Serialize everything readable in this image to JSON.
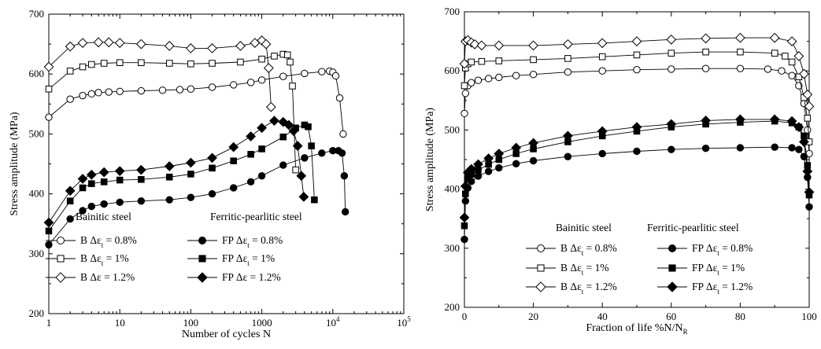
{
  "chart_data": [
    {
      "type": "line",
      "xlabel": "Number of cycles N",
      "ylabel": "Stress amplitude (MPa)",
      "xscale": "log",
      "xlim": [
        1,
        100000
      ],
      "ylim": [
        200,
        700
      ],
      "xticks": [
        1,
        10,
        100,
        1000,
        10000,
        100000
      ],
      "xtick_labels": [
        {
          "base": "1",
          "exp": ""
        },
        {
          "base": "10",
          "exp": ""
        },
        {
          "base": "100",
          "exp": ""
        },
        {
          "base": "1000",
          "exp": ""
        },
        {
          "base": "10",
          "exp": "4"
        },
        {
          "base": "10",
          "exp": "5"
        }
      ],
      "yticks": [
        200,
        300,
        400,
        500,
        600,
        700
      ],
      "grid": false,
      "legend": {
        "placement": "bottom-left",
        "group_titles": [
          "Bainitic steel",
          "Ferritic-pearlitic steel"
        ],
        "entries": [
          {
            "prefix": "B ",
            "sub": "t",
            "value": " = 0.8%",
            "marker": "circle",
            "filled": false
          },
          {
            "prefix": "FP ",
            "sub": "t",
            "value": " = 0.8%",
            "marker": "circle",
            "filled": true
          },
          {
            "prefix": "B ",
            "sub": "t",
            "value": " = 1%",
            "marker": "square",
            "filled": false
          },
          {
            "prefix": "FP  ",
            "sub": "t",
            "value": " = 1%",
            "marker": "square",
            "filled": true
          },
          {
            "prefix": "B ",
            "sub": "",
            "value": " = 1.2%",
            "marker": "diamond",
            "filled": false
          },
          {
            "prefix": "FP  ",
            "sub": "",
            "value": " = 1.2%",
            "marker": "diamond",
            "filled": true
          }
        ]
      },
      "series": [
        {
          "marker": "circle",
          "filled": false,
          "x": [
            1,
            2,
            3,
            4,
            5,
            7,
            10,
            20,
            40,
            70,
            100,
            200,
            400,
            700,
            1000,
            2000,
            4000,
            7000,
            9000,
            10000,
            11000,
            12500,
            14000
          ],
          "y": [
            528,
            558,
            564,
            567,
            569,
            570,
            571,
            572,
            573,
            574,
            575,
            578,
            582,
            586,
            590,
            596,
            601,
            604,
            605,
            603,
            597,
            560,
            500
          ]
        },
        {
          "marker": "square",
          "filled": false,
          "x": [
            1,
            2,
            3,
            4,
            6,
            10,
            20,
            50,
            100,
            200,
            500,
            1000,
            1500,
            2000,
            2300,
            2500,
            2700,
            3000
          ],
          "y": [
            575,
            605,
            612,
            616,
            618,
            619,
            619,
            618,
            617,
            618,
            620,
            625,
            630,
            633,
            632,
            620,
            580,
            440
          ]
        },
        {
          "marker": "diamond",
          "filled": false,
          "x": [
            1,
            2,
            3,
            5,
            7,
            10,
            20,
            50,
            100,
            200,
            500,
            800,
            1000,
            1150,
            1250,
            1350
          ],
          "y": [
            612,
            646,
            652,
            653,
            653,
            652,
            650,
            647,
            643,
            643,
            647,
            652,
            656,
            650,
            610,
            545
          ]
        },
        {
          "marker": "circle",
          "filled": true,
          "x": [
            1,
            2,
            3,
            4,
            6,
            10,
            20,
            50,
            100,
            200,
            400,
            700,
            1000,
            2000,
            4000,
            7000,
            10000,
            12000,
            13500,
            14500,
            15000
          ],
          "y": [
            315,
            358,
            372,
            379,
            383,
            386,
            388,
            390,
            394,
            400,
            410,
            420,
            430,
            448,
            460,
            468,
            472,
            472,
            468,
            430,
            370
          ]
        },
        {
          "marker": "square",
          "filled": true,
          "x": [
            1,
            2,
            3,
            4,
            6,
            10,
            20,
            50,
            100,
            200,
            400,
            700,
            1000,
            2000,
            3000,
            4000,
            4500,
            5000,
            5500
          ],
          "y": [
            338,
            388,
            410,
            417,
            420,
            423,
            424,
            428,
            433,
            443,
            455,
            466,
            475,
            495,
            510,
            515,
            512,
            480,
            390
          ]
        },
        {
          "marker": "diamond",
          "filled": true,
          "x": [
            1,
            2,
            3,
            4,
            6,
            10,
            20,
            50,
            100,
            200,
            400,
            700,
            1000,
            1500,
            2000,
            2400,
            2800,
            3200,
            3600,
            3900
          ],
          "y": [
            352,
            405,
            425,
            432,
            436,
            438,
            440,
            446,
            452,
            460,
            478,
            496,
            510,
            522,
            520,
            515,
            505,
            480,
            430,
            395
          ]
        }
      ]
    },
    {
      "type": "line",
      "xlabel": "Fraction of life %N/N",
      "xlabel_sub": "R",
      "ylabel": "Stress amplitude (MPa)",
      "xlim": [
        0,
        100
      ],
      "ylim": [
        200,
        700
      ],
      "xticks": [
        0,
        20,
        40,
        60,
        80,
        100
      ],
      "yticks": [
        200,
        300,
        400,
        500,
        600,
        700
      ],
      "grid": false,
      "legend": {
        "placement": "bottom-left",
        "group_titles": [
          "Bainitic steel",
          "Ferritic-pearlitic steel"
        ],
        "entries": [
          {
            "prefix": "B ",
            "sub": "t",
            "value": " = 0.8%",
            "marker": "circle",
            "filled": false
          },
          {
            "prefix": "FP ",
            "sub": "t",
            "value": " = 0.8%",
            "marker": "circle",
            "filled": true
          },
          {
            "prefix": "B ",
            "sub": "t",
            "value": " = 1%",
            "marker": "square",
            "filled": false
          },
          {
            "prefix": "FP ",
            "sub": "t",
            "value": " = 1%",
            "marker": "square",
            "filled": true
          },
          {
            "prefix": "B ",
            "sub": "t",
            "value": " = 1.2%",
            "marker": "diamond",
            "filled": false
          },
          {
            "prefix": "FP ",
            "sub": "t",
            "value": " = 1.2%",
            "marker": "diamond",
            "filled": true
          }
        ]
      },
      "series": [
        {
          "marker": "circle",
          "filled": false,
          "x": [
            0,
            0.3,
            1,
            2,
            4,
            7,
            10,
            15,
            20,
            30,
            40,
            50,
            60,
            70,
            80,
            88,
            92,
            95,
            97,
            98.5,
            99.5,
            100
          ],
          "y": [
            528,
            562,
            575,
            580,
            584,
            587,
            589,
            592,
            594,
            598,
            600,
            602,
            603,
            604,
            604,
            603,
            600,
            592,
            575,
            545,
            500,
            460
          ]
        },
        {
          "marker": "square",
          "filled": false,
          "x": [
            0,
            0.3,
            1,
            2,
            5,
            10,
            20,
            30,
            40,
            50,
            60,
            70,
            80,
            90,
            93,
            95,
            97,
            98.5,
            99.5,
            100
          ],
          "y": [
            575,
            605,
            612,
            615,
            616,
            617,
            619,
            621,
            624,
            627,
            630,
            632,
            632,
            630,
            625,
            615,
            590,
            555,
            520,
            480
          ]
        },
        {
          "marker": "diamond",
          "filled": false,
          "x": [
            0,
            0.3,
            1,
            2,
            3,
            5,
            10,
            20,
            30,
            40,
            50,
            60,
            70,
            80,
            90,
            95,
            97,
            98.5,
            99.5,
            100
          ],
          "y": [
            612,
            650,
            652,
            648,
            645,
            643,
            643,
            643,
            645,
            647,
            650,
            653,
            655,
            656,
            656,
            650,
            625,
            595,
            560,
            540
          ]
        },
        {
          "marker": "circle",
          "filled": true,
          "x": [
            0,
            0.3,
            1,
            2,
            4,
            7,
            10,
            15,
            20,
            30,
            40,
            50,
            60,
            70,
            80,
            90,
            95,
            97,
            98.5,
            99.5,
            100
          ],
          "y": [
            315,
            380,
            402,
            413,
            422,
            430,
            436,
            443,
            448,
            455,
            460,
            464,
            467,
            469,
            470,
            471,
            470,
            467,
            455,
            420,
            370
          ]
        },
        {
          "marker": "square",
          "filled": true,
          "x": [
            0,
            0.3,
            1,
            2,
            4,
            7,
            10,
            15,
            20,
            30,
            40,
            50,
            60,
            70,
            80,
            90,
            95,
            97,
            98.5,
            99.5,
            100
          ],
          "y": [
            338,
            392,
            418,
            425,
            432,
            442,
            450,
            460,
            468,
            480,
            490,
            498,
            505,
            510,
            513,
            515,
            512,
            505,
            490,
            440,
            390
          ]
        },
        {
          "marker": "diamond",
          "filled": true,
          "x": [
            0,
            0.3,
            1,
            2,
            4,
            7,
            10,
            15,
            20,
            30,
            40,
            50,
            60,
            70,
            80,
            90,
            95,
            97,
            98.5,
            99.5,
            100
          ],
          "y": [
            352,
            405,
            428,
            434,
            442,
            452,
            460,
            470,
            478,
            490,
            498,
            505,
            510,
            516,
            518,
            518,
            515,
            505,
            480,
            430,
            395
          ]
        }
      ]
    }
  ]
}
